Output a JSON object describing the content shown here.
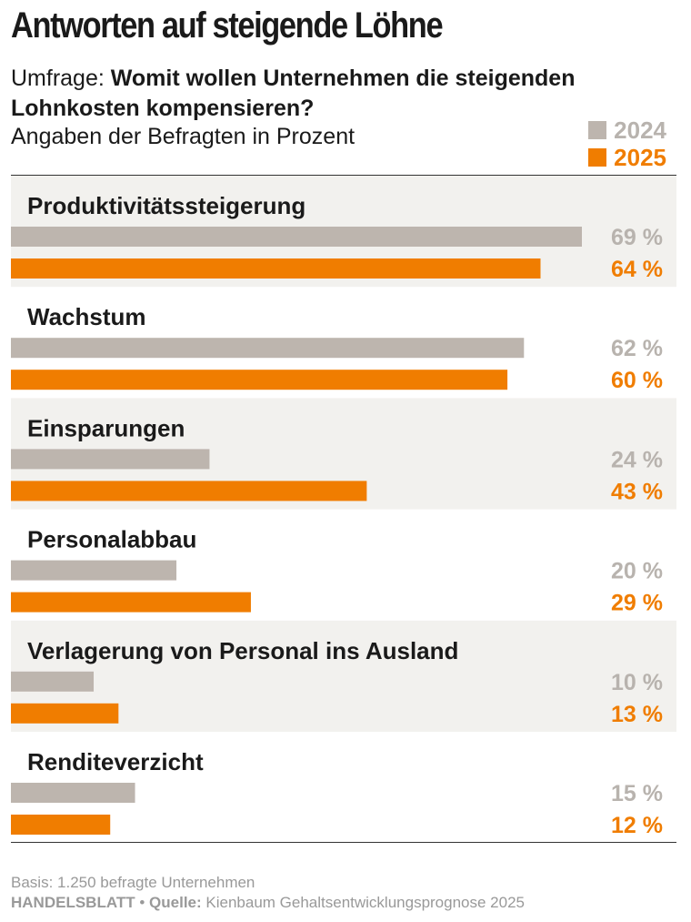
{
  "title": "Antworten auf steigende Löhne",
  "subtitle_prefix": "Umfrage: ",
  "subtitle_bold": "Womit wollen Unternehmen die steigenden Lohnkosten kompensieren?",
  "unit": "Angaben der Befragten in Prozent",
  "colors": {
    "y2024": "#bdb5ae",
    "y2025": "#f07d00",
    "band": "#f2f1ee",
    "text": "#1a1a1a",
    "label2024": "#b8b3ae"
  },
  "chart_data": {
    "type": "bar",
    "orientation": "horizontal",
    "categories": [
      "Produktivitätssteigerung",
      "Wachstum",
      "Einsparungen",
      "Personalabbau",
      "Verlagerung von Personal ins Ausland",
      "Renditeverzicht"
    ],
    "series": [
      {
        "name": "2024",
        "values": [
          69,
          62,
          24,
          20,
          10,
          15
        ]
      },
      {
        "name": "2025",
        "values": [
          64,
          60,
          43,
          29,
          13,
          12
        ]
      }
    ],
    "value_suffix": " %",
    "xlim": [
      0,
      69
    ],
    "legend_position": "top-right",
    "grid": false
  },
  "footer": {
    "basis": "Basis: 1.250 befragte Unternehmen",
    "brand": "HANDELSBLATT",
    "separator": " • ",
    "source_label": "Quelle:",
    "source": " Kienbaum Gehaltsentwicklungsprognose 2025"
  }
}
